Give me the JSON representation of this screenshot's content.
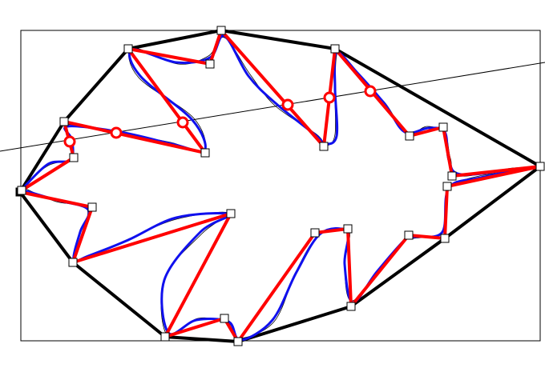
{
  "figure": {
    "type": "geometry-diagram",
    "description_visible_text": "",
    "colors": {
      "frame": "#000000",
      "convex_hull": "#000000",
      "smooth_curve": "#1010ee",
      "polygon": "#ff0000",
      "intersection_marker": "#ff0000",
      "vertex_marker_fill": "#ffffff",
      "sketch": "#000000",
      "secant_line": "#000000"
    },
    "marker_counts": {
      "polygon_vertices": 31,
      "line_intersections": 6
    }
  }
}
